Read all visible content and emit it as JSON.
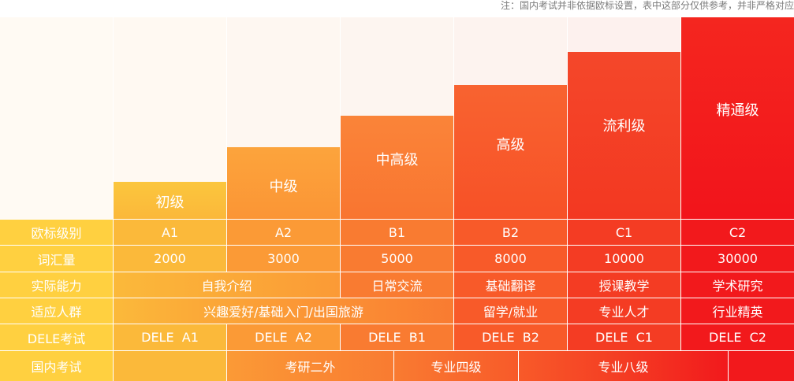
{
  "note": "注：国内考试并非依据欧标设置，表中这部分仅供参考，并非严格对应",
  "levels": [
    {
      "name": "初级",
      "cefr": "A1",
      "vocab": "2000",
      "dele": "DELE  A1"
    },
    {
      "name": "中级",
      "cefr": "A2",
      "vocab": "3000",
      "dele": "DELE  A2"
    },
    {
      "name": "中高级",
      "cefr": "B1",
      "vocab": "5000",
      "dele": "DELE  B1"
    },
    {
      "name": "高级",
      "cefr": "B2",
      "vocab": "8000",
      "dele": "DELE  B2"
    },
    {
      "name": "流利级",
      "cefr": "C1",
      "vocab": "10000",
      "dele": "DELE  C1"
    },
    {
      "name": "精通级",
      "cefr": "C2",
      "vocab": "30000",
      "dele": "DELE  C2"
    }
  ],
  "row_headers": {
    "cefr": "欧标级别",
    "vocab": "词汇量",
    "ability": "实际能力",
    "audience": "适应人群",
    "dele": "DELE考试",
    "domestic": "国内考试"
  },
  "ability": [
    "自我介绍",
    "日常交流",
    "基础翻译",
    "授课教学",
    "学术研究"
  ],
  "audience": [
    "兴趣爱好/基础入门/出国旅游",
    "留学/就业",
    "专业人才",
    "行业精英"
  ],
  "domestic": [
    "考研二外",
    "专业四级",
    "专业八级"
  ],
  "colors": {
    "col": [
      "#fcc23a",
      "#fb9d37",
      "#f97c31",
      "#f85a28",
      "#f43e24",
      "#f21a1c"
    ],
    "header": "#ffd040"
  }
}
